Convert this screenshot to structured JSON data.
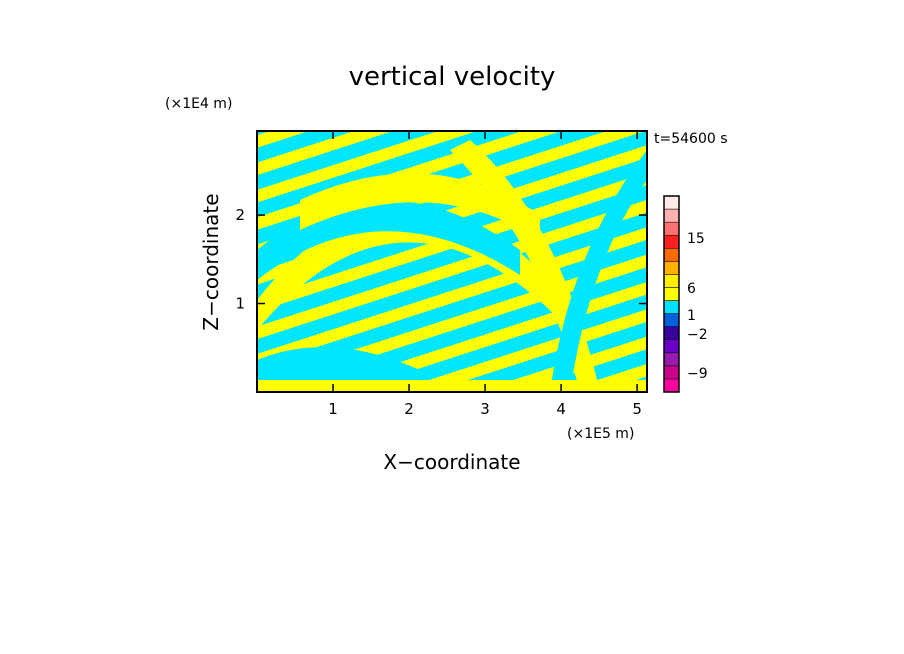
{
  "chart_data": {
    "type": "heatmap",
    "title": "vertical velocity",
    "xlabel": "X−coordinate",
    "ylabel": "Z−coordinate",
    "x_unit": "(×1E5 m)",
    "y_unit": "(×1E4 m)",
    "time_label": "t=54600 s",
    "xlim": [
      0,
      5.13
    ],
    "ylim": [
      0,
      2.95
    ],
    "x_ticks": [
      1,
      2,
      3,
      4,
      5
    ],
    "y_ticks": [
      1,
      2
    ],
    "colorbar": {
      "tick_labels": [
        "15",
        "6",
        "1",
        "−2",
        "−9"
      ],
      "colors": [
        "#ff00a0",
        "#c8008c",
        "#9a1ab0",
        "#6a00c8",
        "#3a00a0",
        "#0060e0",
        "#00e0ff",
        "#ffff00",
        "#fff000",
        "#ffb000",
        "#ff6a00",
        "#ff2020",
        "#ff7070",
        "#ffb0b0",
        "#ffe8e8"
      ]
    },
    "dominant_colors": {
      "positive": "#ffff00",
      "negative": "#00e6ff"
    }
  }
}
